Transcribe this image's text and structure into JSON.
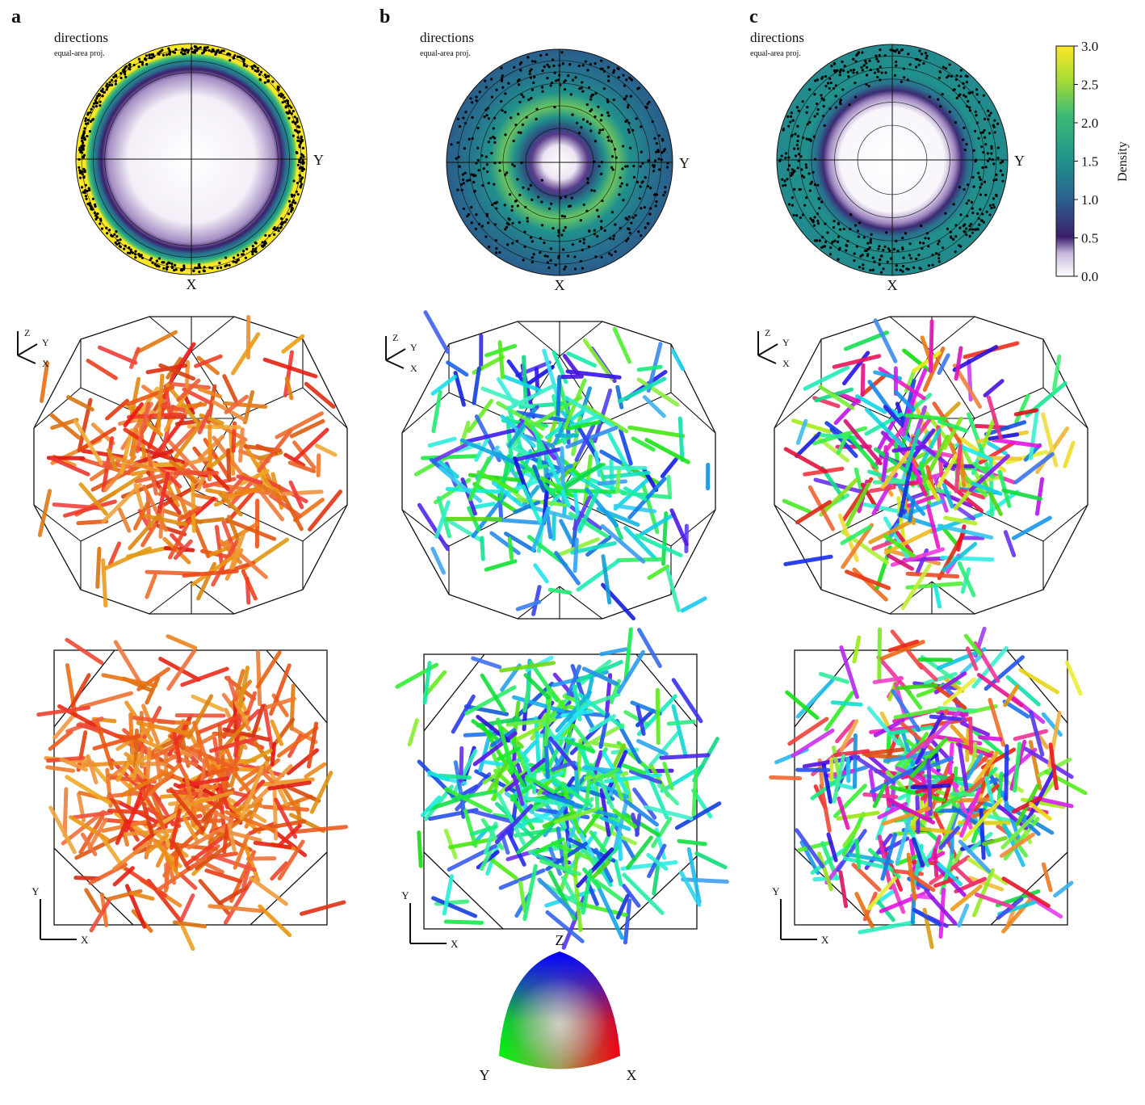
{
  "panels": [
    {
      "label": "a",
      "title": "directions",
      "subtitle": "equal-area proj.",
      "x_axis": "X",
      "y_axis": "Y",
      "triad3d": [
        "Z",
        "Y",
        "X"
      ],
      "triad2d": [
        "Y",
        "X"
      ]
    },
    {
      "label": "b",
      "title": "directions",
      "subtitle": "equal-area proj.",
      "x_axis": "X",
      "y_axis": "Y",
      "triad3d": [
        "Z",
        "Y",
        "X"
      ],
      "triad2d": [
        "Y",
        "X"
      ]
    },
    {
      "label": "c",
      "title": "directions",
      "subtitle": "equal-area proj.",
      "x_axis": "X",
      "y_axis": "Y",
      "triad3d": [
        "Z",
        "Y",
        "X"
      ],
      "triad2d": [
        "Y",
        "X"
      ]
    }
  ],
  "colorbar": {
    "title": "Density",
    "ylim": [
      0,
      3
    ],
    "yticks": [
      {
        "value": 0,
        "label": "0.0"
      },
      {
        "value": 0.5,
        "label": "0.5"
      },
      {
        "value": 1,
        "label": "1.0"
      },
      {
        "value": 1.5,
        "label": "1.5"
      },
      {
        "value": 2,
        "label": "2.0"
      },
      {
        "value": 2.5,
        "label": "2.5"
      },
      {
        "value": 3,
        "label": "3.0"
      }
    ]
  },
  "color_key": {
    "labels": [
      "Z",
      "Y",
      "X"
    ]
  }
}
